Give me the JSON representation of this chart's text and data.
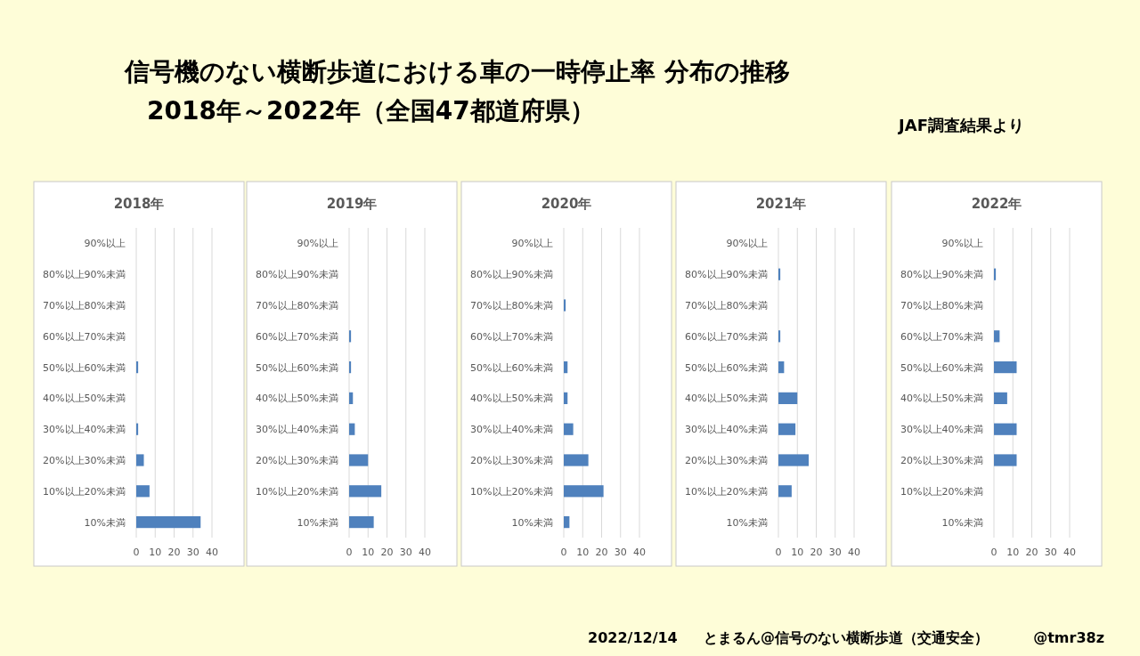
{
  "chart_data": [
    {
      "type": "bar",
      "orientation": "horizontal",
      "title": "2018年",
      "categories": [
        "90%以上",
        "80%以上90%未満",
        "70%以上80%未満",
        "60%以上70%未満",
        "50%以上60%未満",
        "40%以上50%未満",
        "30%以上40%未満",
        "20%以上30%未満",
        "10%以上20%未満",
        "10%未満"
      ],
      "values": [
        0,
        0,
        0,
        0,
        1,
        0,
        1,
        4,
        7,
        34
      ],
      "color": "#4f81bd",
      "xlim": [
        0,
        40
      ],
      "xticks": [
        0,
        10,
        20,
        30,
        40
      ],
      "grid": "x",
      "annotations": [
        "信号機のない横断歩道における車の一時停止率  分布の推移",
        "2018年～2022年（全国47都道府県）",
        "JAF調査結果より",
        "2022/12/14",
        "とまるん@信号のない横断歩道（交通安全）",
        "@tmr38z"
      ]
    },
    {
      "type": "bar",
      "orientation": "horizontal",
      "title": "2019年",
      "categories": [
        "90%以上",
        "80%以上90%未満",
        "70%以上80%未満",
        "60%以上70%未満",
        "50%以上60%未満",
        "40%以上50%未満",
        "30%以上40%未満",
        "20%以上30%未満",
        "10%以上20%未満",
        "10%未満"
      ],
      "values": [
        0,
        0,
        0,
        1,
        1,
        2,
        3,
        10,
        17,
        13
      ],
      "color": "#4f81bd",
      "xlim": [
        0,
        40
      ],
      "xticks": [
        0,
        10,
        20,
        30,
        40
      ],
      "grid": "x"
    },
    {
      "type": "bar",
      "orientation": "horizontal",
      "title": "2020年",
      "categories": [
        "90%以上",
        "80%以上90%未満",
        "70%以上80%未満",
        "60%以上70%未満",
        "50%以上60%未満",
        "40%以上50%未満",
        "30%以上40%未満",
        "20%以上30%未満",
        "10%以上20%未満",
        "10%未満"
      ],
      "values": [
        0,
        0,
        1,
        0,
        2,
        2,
        5,
        13,
        21,
        3
      ],
      "color": "#4f81bd",
      "xlim": [
        0,
        40
      ],
      "xticks": [
        0,
        10,
        20,
        30,
        40
      ],
      "grid": "x"
    },
    {
      "type": "bar",
      "orientation": "horizontal",
      "title": "2021年",
      "categories": [
        "90%以上",
        "80%以上90%未満",
        "70%以上80%未満",
        "60%以上70%未満",
        "50%以上60%未満",
        "40%以上50%未満",
        "30%以上40%未満",
        "20%以上30%未満",
        "10%以上20%未満",
        "10%未満"
      ],
      "values": [
        0,
        1,
        0,
        1,
        3,
        10,
        9,
        16,
        7,
        0
      ],
      "color": "#4f81bd",
      "xlim": [
        0,
        40
      ],
      "xticks": [
        0,
        10,
        20,
        30,
        40
      ],
      "grid": "x"
    },
    {
      "type": "bar",
      "orientation": "horizontal",
      "title": "2022年",
      "categories": [
        "90%以上",
        "80%以上90%未満",
        "70%以上80%未満",
        "60%以上70%未満",
        "50%以上60%未満",
        "40%以上50%未満",
        "30%以上40%未満",
        "20%以上30%未満",
        "10%以上20%未満",
        "10%未満"
      ],
      "values": [
        0,
        1,
        0,
        3,
        12,
        7,
        12,
        12,
        0,
        0
      ],
      "color": "#4f81bd",
      "xlim": [
        0,
        40
      ],
      "xticks": [
        0,
        10,
        20,
        30,
        40
      ],
      "grid": "x"
    }
  ]
}
